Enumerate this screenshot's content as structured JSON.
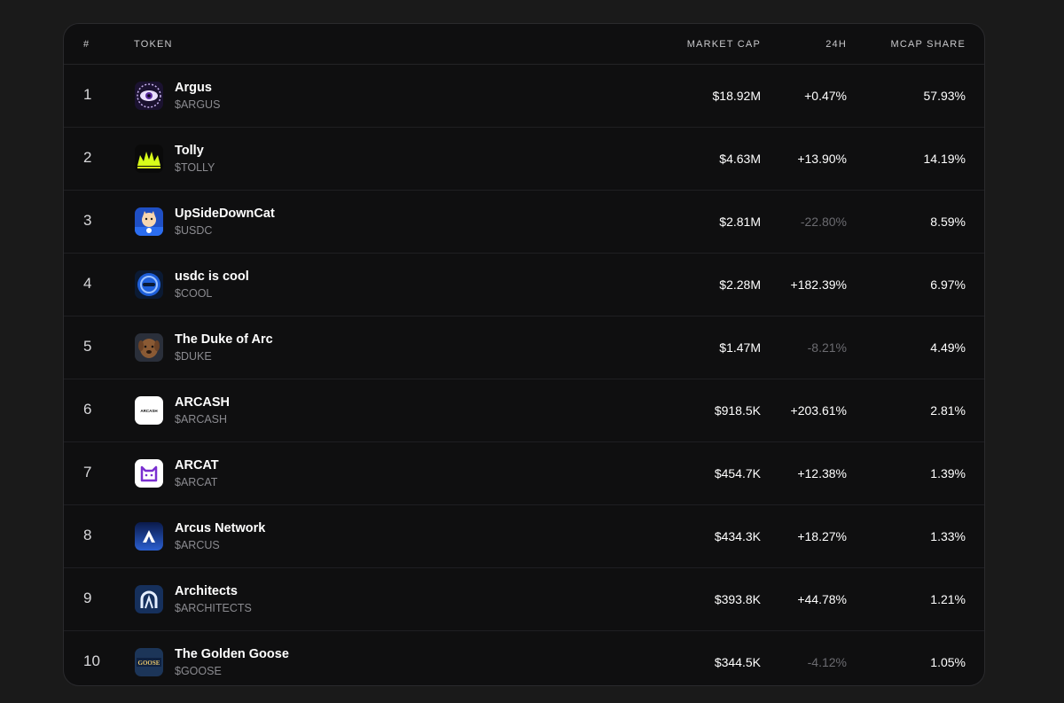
{
  "table": {
    "headers": {
      "rank": "#",
      "token": "TOKEN",
      "market_cap": "MARKET CAP",
      "change_24h": "24H",
      "mcap_share": "MCAP SHARE"
    },
    "rows": [
      {
        "rank": "1",
        "name": "Argus",
        "symbol": "$ARGUS",
        "market_cap": "$18.92M",
        "change_24h": "+0.47%",
        "mcap_share": "57.93%",
        "icon": "argus-eye-logo"
      },
      {
        "rank": "2",
        "name": "Tolly",
        "symbol": "$TOLLY",
        "market_cap": "$4.63M",
        "change_24h": "+13.90%",
        "mcap_share": "14.19%",
        "icon": "tolly-crown-logo"
      },
      {
        "rank": "3",
        "name": "UpSideDownCat",
        "symbol": "$USDC",
        "market_cap": "$2.81M",
        "change_24h": "-22.80%",
        "mcap_share": "8.59%",
        "icon": "cat-logo"
      },
      {
        "rank": "4",
        "name": "usdc is cool",
        "symbol": "$COOL",
        "market_cap": "$2.28M",
        "change_24h": "+182.39%",
        "mcap_share": "6.97%",
        "icon": "cool-coin-logo"
      },
      {
        "rank": "5",
        "name": "The Duke of Arc",
        "symbol": "$DUKE",
        "market_cap": "$1.47M",
        "change_24h": "-8.21%",
        "mcap_share": "4.49%",
        "icon": "dog-logo"
      },
      {
        "rank": "6",
        "name": "ARCASH",
        "symbol": "$ARCASH",
        "market_cap": "$918.5K",
        "change_24h": "+203.61%",
        "mcap_share": "2.81%",
        "icon": "arcash-logo",
        "icon_text": "ARCASH"
      },
      {
        "rank": "7",
        "name": "ARCAT",
        "symbol": "$ARCAT",
        "market_cap": "$454.7K",
        "change_24h": "+12.38%",
        "mcap_share": "1.39%",
        "icon": "arcat-logo"
      },
      {
        "rank": "8",
        "name": "Arcus Network",
        "symbol": "$ARCUS",
        "market_cap": "$434.3K",
        "change_24h": "+18.27%",
        "mcap_share": "1.33%",
        "icon": "arcus-logo"
      },
      {
        "rank": "9",
        "name": "Architects",
        "symbol": "$ARCHITECTS",
        "market_cap": "$393.8K",
        "change_24h": "+44.78%",
        "mcap_share": "1.21%",
        "icon": "architects-logo"
      },
      {
        "rank": "10",
        "name": "The Golden Goose",
        "symbol": "$GOOSE",
        "market_cap": "$344.5K",
        "change_24h": "-4.12%",
        "mcap_share": "1.05%",
        "icon": "goose-logo",
        "icon_text": "GOOSE"
      }
    ]
  },
  "colors": {
    "positive": "#ffffff",
    "negative": "#6b6b70",
    "background": "#1a1a1a",
    "card": "#0f0f10"
  }
}
